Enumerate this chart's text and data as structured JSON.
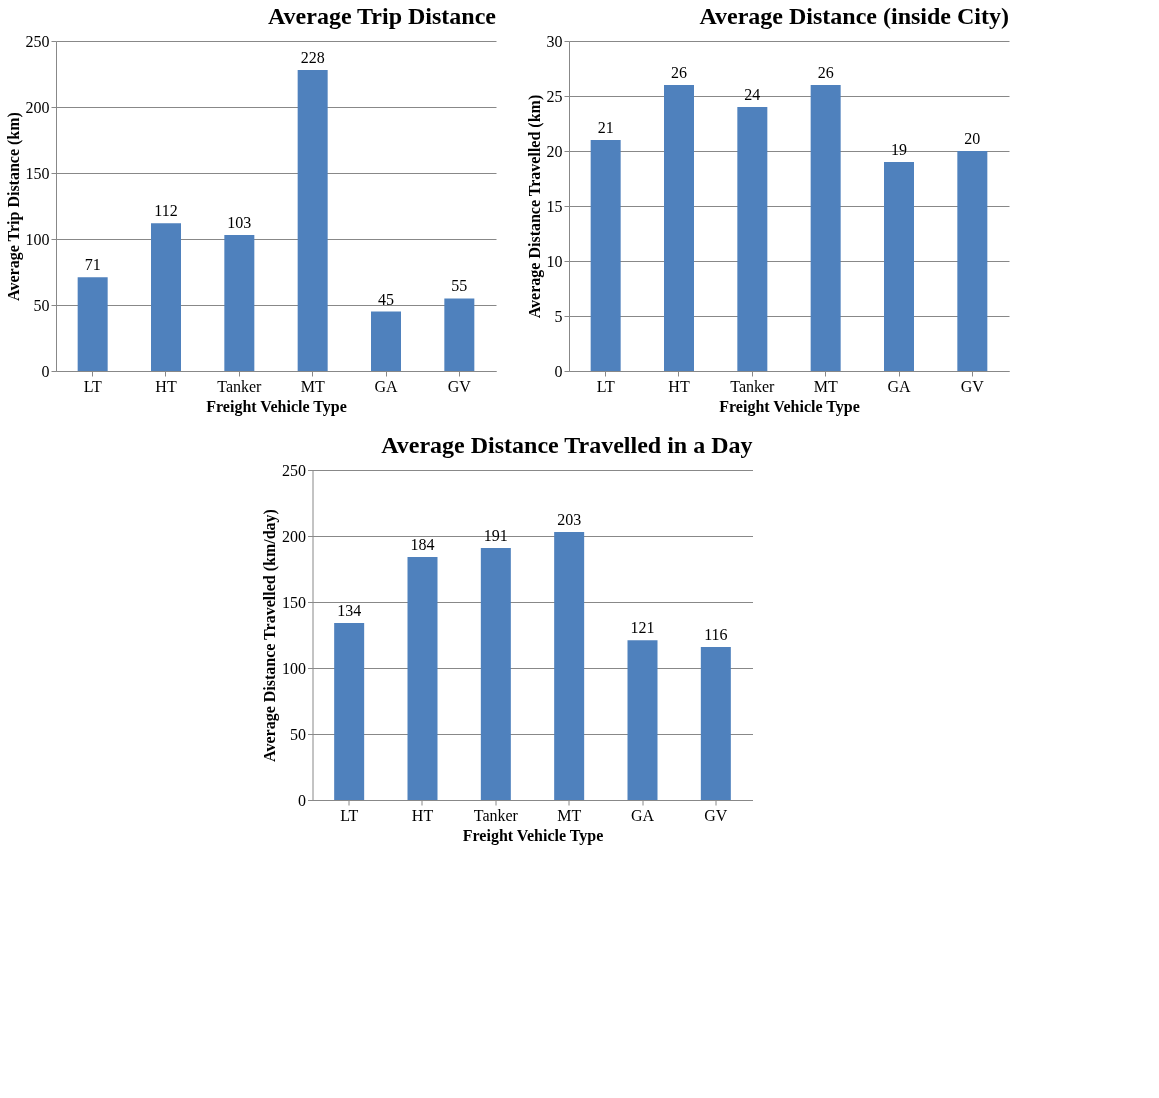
{
  "chart_data": [
    {
      "type": "bar",
      "title": "Average Trip Distance",
      "xlabel": "Freight Vehicle Type",
      "ylabel": "Average Trip Distance (km)",
      "categories": [
        "LT",
        "HT",
        "Tanker",
        "MT",
        "GA",
        "GV"
      ],
      "values": [
        71,
        112,
        103,
        228,
        45,
        55
      ],
      "color": "#4f81bd",
      "ylim": [
        0,
        250
      ],
      "yticks": [
        0,
        50,
        100,
        150,
        200,
        250
      ],
      "grid": "y",
      "data_labels": true
    },
    {
      "type": "bar",
      "title": "Average Distance (inside City)",
      "xlabel": "Freight Vehicle Type",
      "ylabel": "Average Distance Travelled (km)",
      "categories": [
        "LT",
        "HT",
        "Tanker",
        "MT",
        "GA",
        "GV"
      ],
      "values": [
        21,
        26,
        24,
        26,
        19,
        20
      ],
      "color": "#4f81bd",
      "ylim": [
        0,
        30
      ],
      "yticks": [
        0,
        5,
        10,
        15,
        20,
        25,
        30
      ],
      "grid": "y",
      "data_labels": true
    },
    {
      "type": "bar",
      "title": "Average Distance Travelled in a Day",
      "xlabel": "Freight Vehicle Type",
      "ylabel": "Average Distance Travelled (km/day)",
      "categories": [
        "LT",
        "HT",
        "Tanker",
        "MT",
        "GA",
        "GV"
      ],
      "values": [
        134,
        184,
        191,
        203,
        121,
        116
      ],
      "color": "#4f81bd",
      "ylim": [
        0,
        250
      ],
      "yticks": [
        0,
        50,
        100,
        150,
        200,
        250
      ],
      "grid": "y",
      "data_labels": true
    }
  ]
}
